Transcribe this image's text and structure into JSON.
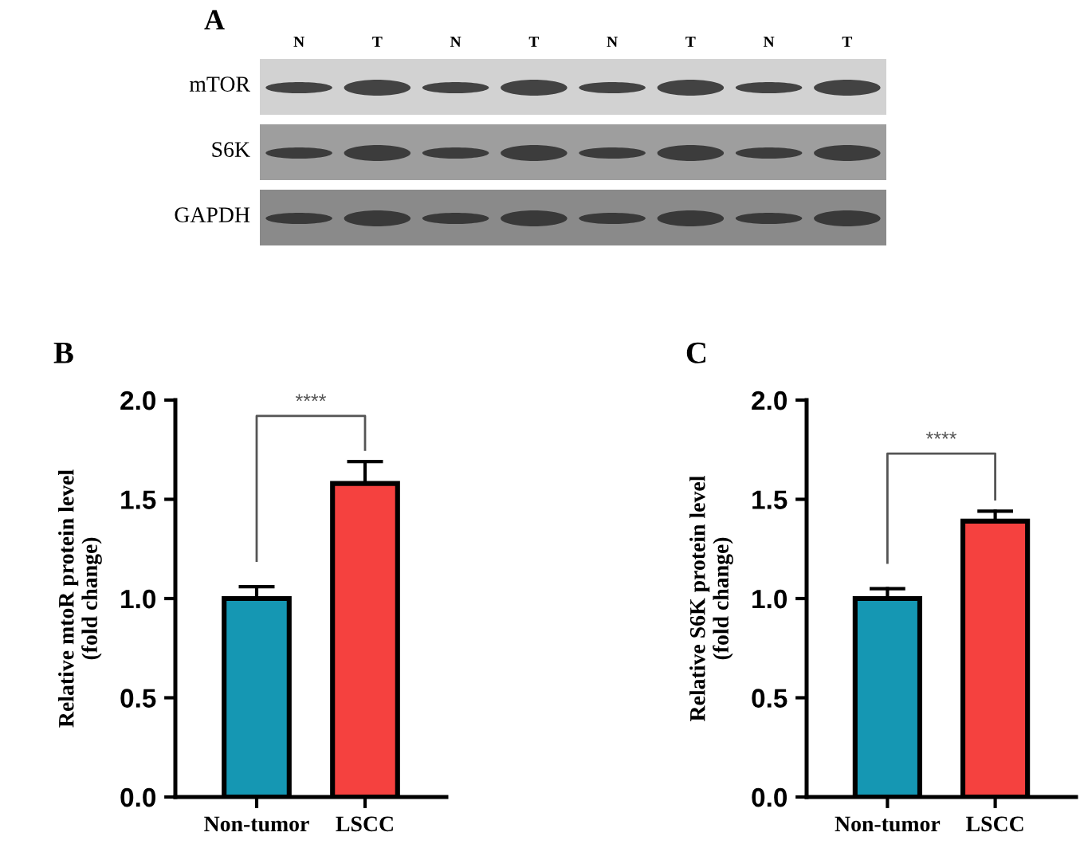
{
  "chart_data": [
    {
      "type": "other",
      "title": "A",
      "categories": [
        "N",
        "T",
        "N",
        "T",
        "N",
        "T",
        "N",
        "T"
      ],
      "annotations": [
        "mTOR",
        "S6K",
        "GAPDH"
      ]
    },
    {
      "type": "bar",
      "title": "B",
      "ylabel": "Relative mtoR protein level\n(fold change)",
      "categories": [
        "Non-tumor",
        "LSCC"
      ],
      "values": [
        1.0,
        1.58
      ],
      "colors": [
        "#1597b3",
        "#f5413f"
      ],
      "errors": [
        [
          1.0,
          1.06
        ],
        [
          1.58,
          1.69
        ]
      ],
      "ylim": [
        0,
        2.0
      ],
      "yticks": [
        {
          "value": 0,
          "label": "0.0"
        },
        {
          "value": 0.5,
          "label": "0.5"
        },
        {
          "value": 1,
          "label": "1.0"
        },
        {
          "value": 1.5,
          "label": "1.5"
        },
        {
          "value": 2,
          "label": "2.0"
        }
      ],
      "annotations": [
        "****"
      ],
      "grid": false
    },
    {
      "type": "bar",
      "title": "C",
      "ylabel": "Relative S6K protein level\n(fold change)",
      "categories": [
        "Non-tumor",
        "LSCC"
      ],
      "values": [
        1.0,
        1.39
      ],
      "colors": [
        "#1597b3",
        "#f5413f"
      ],
      "errors": [
        [
          1.0,
          1.05
        ],
        [
          1.39,
          1.44
        ]
      ],
      "ylim": [
        0,
        2.0
      ],
      "yticks": [
        {
          "value": 0,
          "label": "0.0"
        },
        {
          "value": 0.5,
          "label": "0.5"
        },
        {
          "value": 1,
          "label": "1.0"
        },
        {
          "value": 1.5,
          "label": "1.5"
        },
        {
          "value": 2,
          "label": "2.0"
        }
      ],
      "annotations": [
        "****"
      ],
      "grid": false
    }
  ]
}
